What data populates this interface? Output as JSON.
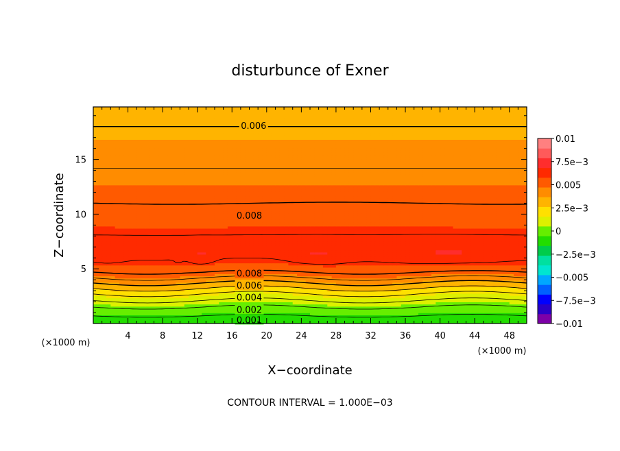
{
  "chart_data": {
    "type": "heatmap",
    "title": "disturbunce of Exner",
    "xlabel": "X−coordinate",
    "ylabel": "Z−coordinate",
    "x_unit": "(×1000 m)",
    "y_unit": "(×1000 m)",
    "xlim": [
      0,
      50
    ],
    "ylim": [
      0,
      19.8
    ],
    "x_ticks": [
      4,
      8,
      12,
      16,
      20,
      24,
      28,
      32,
      36,
      40,
      44,
      48
    ],
    "x_tick_labels": [
      "4",
      "8",
      "12",
      "16",
      "20",
      "24",
      "28",
      "32",
      "36",
      "40",
      "44",
      "48"
    ],
    "y_ticks": [
      5,
      10,
      15
    ],
    "y_tick_labels": [
      "5",
      "10",
      "15"
    ],
    "colorbar": {
      "range": [
        -0.01,
        0.01
      ],
      "step": 0.00125,
      "tick_labels": [
        "0.01",
        "7.5e−3",
        "0.005",
        "2.5e−3",
        "0",
        "−2.5e−3",
        "−0.005",
        "−7.5e−3",
        "−0.01"
      ],
      "colors": [
        "#7d00a8",
        "#2a00c8",
        "#0000ff",
        "#0060ff",
        "#00a8ff",
        "#00e6d0",
        "#00e0a0",
        "#00cc4a",
        "#22dd00",
        "#66ee00",
        "#ddf000",
        "#ffe000",
        "#ffb400",
        "#ff8c00",
        "#ff5a00",
        "#ff2a00",
        "#ff2d2d",
        "#ff5a5a",
        "#ff8080"
      ]
    },
    "profile": {
      "z": [
        0,
        0.3,
        0.7,
        1.1,
        1.5,
        1.9,
        2.3,
        2.7,
        3.1,
        3.5,
        4.0,
        4.5,
        5.5,
        6.5,
        7.5,
        9.0,
        11.0,
        13.0,
        14.5,
        16.0,
        18.0,
        19.8
      ],
      "value": [
        0.0,
        0.0005,
        0.001,
        0.0015,
        0.002,
        0.0027,
        0.0033,
        0.004,
        0.0048,
        0.0056,
        0.0066,
        0.0078,
        0.0088,
        0.0093,
        0.0092,
        0.0087,
        0.008,
        0.0074,
        0.0069,
        0.0064,
        0.006,
        0.0057
      ]
    },
    "warm_pockets": [
      {
        "x": 1.5,
        "z": 6.2,
        "rx": 2.0,
        "rz": 0.6
      },
      {
        "x": 12.5,
        "z": 6.3,
        "rx": 1.5,
        "rz": 0.9
      },
      {
        "x": 26.0,
        "z": 6.3,
        "rx": 3.5,
        "rz": 0.9
      },
      {
        "x": 41.0,
        "z": 6.4,
        "rx": 7.0,
        "rz": 1.0
      },
      {
        "x": 9.8,
        "z": 5.9,
        "rx": 0.4,
        "rz": 0.3
      }
    ],
    "contour_labels": [
      {
        "text": "0.006",
        "x": 18.5,
        "z": 18.1
      },
      {
        "text": "0.008",
        "x": 18.0,
        "z": 9.9
      },
      {
        "text": "0.008",
        "x": 18.0,
        "z": 4.6
      },
      {
        "text": "0.006",
        "x": 18.0,
        "z": 3.5
      },
      {
        "text": "0.004",
        "x": 18.0,
        "z": 2.4
      },
      {
        "text": "0.002",
        "x": 18.0,
        "z": 1.3
      },
      {
        "text": "0.001",
        "x": 18.0,
        "z": 0.35
      }
    ]
  },
  "footer": "CONTOUR INTERVAL = 1.000E−03"
}
